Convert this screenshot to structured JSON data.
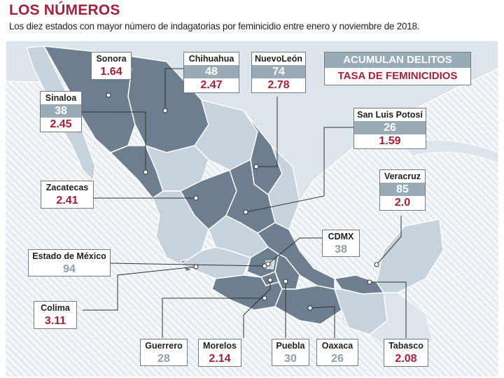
{
  "header": {
    "title": "LOS NÚMEROS",
    "subtitle": "Los diez estados con mayor número de indagatorias por feminicidio entre enero y noviembre de 2018."
  },
  "legend": {
    "crimes_label": "ACUMULAN DELITOS",
    "rate_label": "TASA DE FEMINICIDIOS"
  },
  "states": {
    "sonora": {
      "name": "Sonora",
      "rate": "1.64"
    },
    "chihuahua": {
      "name": "Chihuahua",
      "crimes": "48",
      "rate": "2.47"
    },
    "nuevo_leon": {
      "name": "NuevoLeón",
      "crimes": "74",
      "rate": "2.78"
    },
    "sinaloa": {
      "name": "Sinaloa",
      "crimes": "38",
      "rate": "2.45"
    },
    "san_luis_potosi": {
      "name": "San Luis Potosí",
      "crimes": "26",
      "rate": "1.59"
    },
    "zacatecas": {
      "name": "Zacatecas",
      "rate": "2.41"
    },
    "veracruz": {
      "name": "Veracruz",
      "crimes": "85",
      "rate": "2.0"
    },
    "cdmx": {
      "name": "CDMX",
      "crimes": "38"
    },
    "estado_de_mexico": {
      "name": "Estado de México",
      "crimes": "94"
    },
    "colima": {
      "name": "Colima",
      "rate": "3.11"
    },
    "guerrero": {
      "name": "Guerrero",
      "crimes": "28"
    },
    "morelos": {
      "name": "Morelos",
      "rate": "2.14"
    },
    "puebla": {
      "name": "Puebla",
      "crimes": "30"
    },
    "oaxaca": {
      "name": "Oaxaca",
      "crimes": "26"
    },
    "tabasco": {
      "name": "Tabasco",
      "rate": "2.08"
    }
  },
  "colors": {
    "highlight_state": "#6c7e8f",
    "other_state": "#c6d2dc",
    "background_land": "#dde5ec",
    "water_hatch": "#e9f0f6",
    "accent_red": "#a3213a",
    "accent_blue": "#9aabb8"
  }
}
